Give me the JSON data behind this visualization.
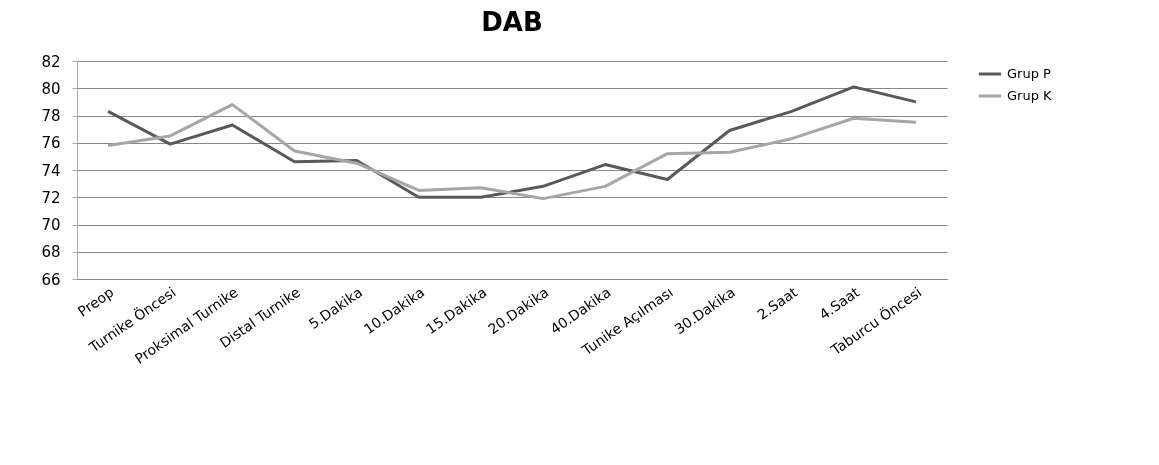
{
  "chart_data": {
    "type": "line",
    "title": "DAB",
    "categories": [
      "Preop",
      "Turnike Öncesi",
      "Proksimal Turnike",
      "Distal Turnike",
      "5.Dakika",
      "10.Dakika",
      "15.Dakika",
      "20.Dakika",
      "40.Dakika",
      "Tunike Açılması",
      "30.Dakika",
      "2.Saat",
      "4.Saat",
      "Taburcu Öncesi"
    ],
    "series": [
      {
        "name": "Grup P",
        "color": "#595959",
        "values": [
          78.3,
          75.9,
          77.3,
          74.6,
          74.7,
          72.0,
          72.0,
          72.8,
          74.4,
          73.3,
          76.9,
          78.3,
          80.1,
          79.0
        ]
      },
      {
        "name": "Grup K",
        "color": "#a6a6a6",
        "values": [
          75.8,
          76.5,
          78.8,
          75.4,
          74.5,
          72.5,
          72.7,
          71.9,
          72.8,
          75.2,
          75.3,
          76.3,
          77.8,
          77.5
        ]
      }
    ],
    "ylim": [
      66,
      82
    ],
    "yticks": [
      66,
      68,
      70,
      72,
      74,
      76,
      78,
      80,
      82
    ],
    "grid": "y",
    "legend": "right",
    "line_style": "solid",
    "marker": "none"
  }
}
